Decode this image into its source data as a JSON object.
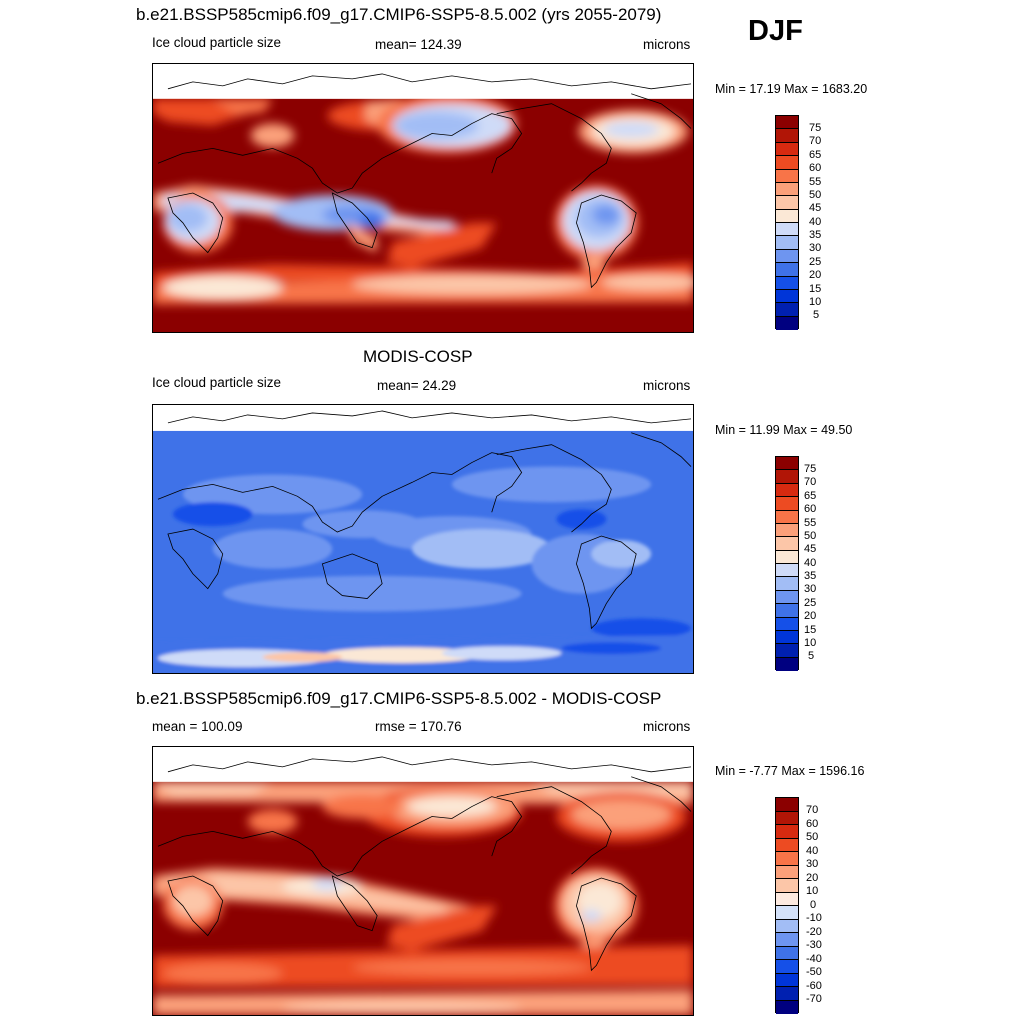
{
  "season": "DJF",
  "palettes": {
    "abs": [
      "#000080",
      "#0020b0",
      "#0035d8",
      "#1550e8",
      "#3f72e8",
      "#6e95f0",
      "#a2bdf5",
      "#cfdbf8",
      "#fbe8d6",
      "#fcc6a8",
      "#fba07a",
      "#f87448",
      "#ed4b22",
      "#d72a10",
      "#b11506",
      "#8b0000"
    ],
    "diff": [
      "#000080",
      "#0020b0",
      "#0035d8",
      "#1550e8",
      "#3f72e8",
      "#6e95f0",
      "#a2bdf5",
      "#d4e2fa",
      "#fdeae0",
      "#fcc6a8",
      "#fba07a",
      "#f87448",
      "#ed4b22",
      "#d72a10",
      "#b11506",
      "#8b0000"
    ]
  },
  "panels": [
    {
      "title": "b.e21.BSSP585cmip6.f09_g17.CMIP6-SSP5-8.5.002 (yrs 2055-2079)",
      "left_label": "Ice cloud particle size",
      "center_label": "mean= 124.39",
      "units": "microns",
      "minmax": "Min =  17.19 Max = 1683.20",
      "levels": [
        "75",
        "70",
        "65",
        "60",
        "55",
        "50",
        "45",
        "40",
        "35",
        "30",
        "25",
        "20",
        "15",
        "10",
        "5"
      ]
    },
    {
      "title": "MODIS-COSP",
      "left_label": "Ice cloud particle size",
      "center_label": "mean=  24.29",
      "units": "microns",
      "minmax": "Min =  11.99 Max =  49.50",
      "levels": [
        "75",
        "70",
        "65",
        "60",
        "55",
        "50",
        "45",
        "40",
        "35",
        "30",
        "25",
        "20",
        "15",
        "10",
        "5"
      ]
    },
    {
      "title": "b.e21.BSSP585cmip6.f09_g17.CMIP6-SSP5-8.5.002 - MODIS-COSP",
      "left_label": "mean = 100.09",
      "center_label": "rmse = 170.76",
      "units": "microns",
      "minmax": "Min =  -7.77 Max = 1596.16",
      "levels": [
        "70",
        "60",
        "50",
        "40",
        "30",
        "20",
        "10",
        "0",
        "-10",
        "-20",
        "-30",
        "-40",
        "-50",
        "-60",
        "-70"
      ]
    }
  ]
}
